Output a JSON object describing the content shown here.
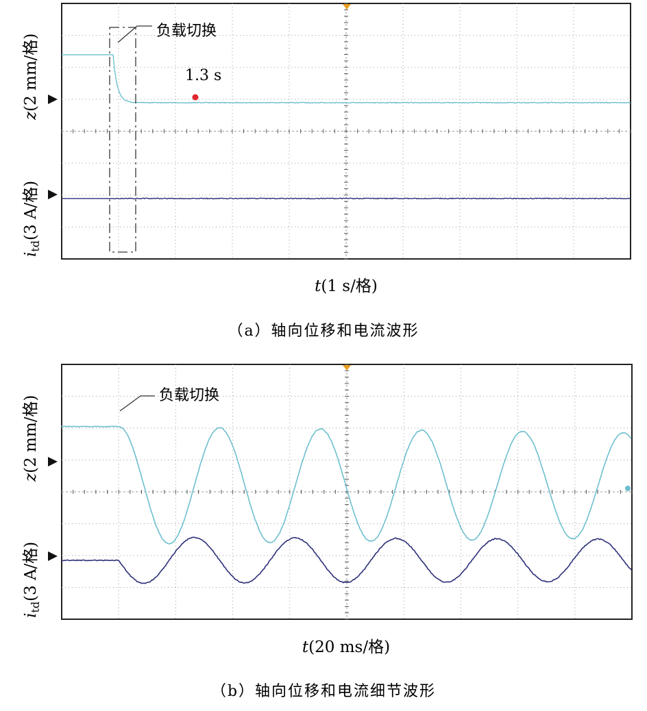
{
  "chart_data": [
    {
      "type": "line",
      "grid": true,
      "caption": "（a）轴向位移和电流波形",
      "xlabel_var": "t",
      "xlabel_unit": "(1 s/格)",
      "annotations": {
        "load_switch": "负载切换",
        "settling_time": "1.3 s"
      },
      "series": [
        {
          "ylabel_var": "z",
          "ylabel_unit": "(2 mm/格)",
          "color": "#6ebfce",
          "pre_level_div": 1.5,
          "settle_level_div": 0,
          "initial_peak_div": 1.3,
          "decay_time_div": 0.45
        },
        {
          "ylabel_var": "i",
          "ylabel_sub": "td",
          "ylabel_unit": "(3 A/格)",
          "color": "#2c2f78",
          "pre_level_div": 0,
          "settle_level_div": 0,
          "initial_peak_div": 1.3,
          "decay_time_div": 0.45
        }
      ],
      "switch_time_div": 1.0,
      "settling_time_s": 1.3
    },
    {
      "type": "line",
      "grid": true,
      "caption": "（b）轴向位移和电流细节波形",
      "xlabel_var": "t",
      "xlabel_unit": "(20 ms/格)",
      "annotations": {
        "load_switch": "负载切换"
      },
      "switch_time_div": 1.0,
      "oscillation_period_div": 1.77,
      "series": [
        {
          "ylabel_var": "z",
          "ylabel_unit": "(2 mm/格)",
          "color": "#6ebfce",
          "pre_level_div": 1.5,
          "center_div": 0.0,
          "amplitude_div": 1.25
        },
        {
          "ylabel_var": "i",
          "ylabel_sub": "td",
          "ylabel_unit": "(3 A/格)",
          "color": "#2c2f78",
          "pre_level_div": 0.0,
          "center_div": 0.0,
          "amplitude_div": 1.25
        }
      ]
    }
  ]
}
